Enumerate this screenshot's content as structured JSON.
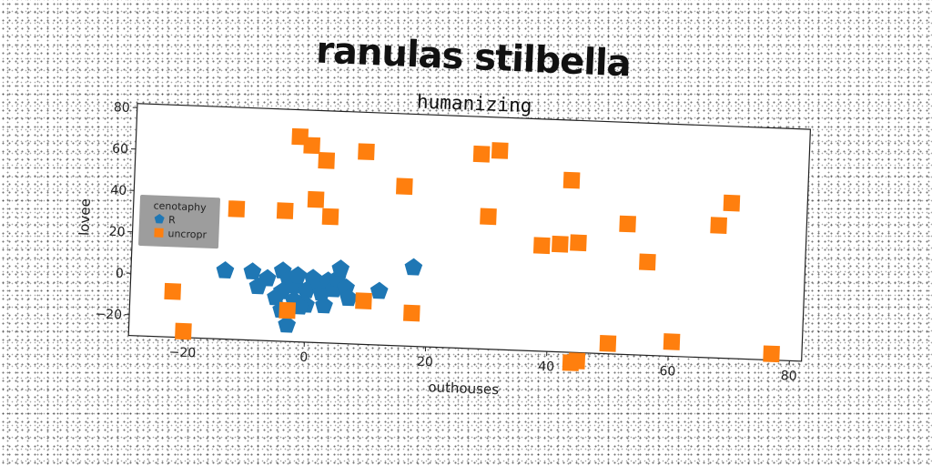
{
  "title": "ranulas stilbella",
  "chart_data": {
    "type": "scatter",
    "subtitle": "humanizing",
    "xlabel": "outhouses",
    "ylabel": "lovee",
    "xlim": [
      -29,
      82
    ],
    "ylim": [
      -30,
      82
    ],
    "xticks": [
      -20,
      0,
      20,
      40,
      60,
      80
    ],
    "yticks": [
      -20,
      0,
      20,
      40,
      60,
      80
    ],
    "grid": false,
    "legend": {
      "title": "cenotaphy",
      "placement": "left",
      "entries": [
        {
          "label": "R",
          "series": 0
        },
        {
          "label": "uncropr",
          "series": 1
        }
      ]
    },
    "series": [
      {
        "name": "R",
        "color": "#1f77b4",
        "marker": "pentagon",
        "points": [
          [
            -13.5,
            3
          ],
          [
            -9,
            3
          ],
          [
            -6.5,
            0
          ],
          [
            -8,
            -4
          ],
          [
            -4,
            4
          ],
          [
            -3,
            0
          ],
          [
            -2,
            -3
          ],
          [
            -1.5,
            2
          ],
          [
            0,
            -5
          ],
          [
            1,
            1
          ],
          [
            2,
            -2
          ],
          [
            2.5,
            -6
          ],
          [
            3.5,
            0
          ],
          [
            4.5,
            -4
          ],
          [
            5,
            1
          ],
          [
            5.5,
            6
          ],
          [
            6.5,
            -3
          ],
          [
            7,
            -8
          ],
          [
            -4,
            -6
          ],
          [
            -2,
            -10
          ],
          [
            0,
            -12
          ],
          [
            3,
            -12
          ],
          [
            -1,
            -13
          ],
          [
            -4,
            -15
          ],
          [
            -3,
            -22
          ],
          [
            12,
            -4
          ],
          [
            17.5,
            8
          ],
          [
            -5,
            -9
          ]
        ]
      },
      {
        "name": "uncropr",
        "color": "#ff7f0e",
        "marker": "square",
        "points": [
          [
            -22,
            -8
          ],
          [
            -20,
            -27
          ],
          [
            -12,
            33
          ],
          [
            -4,
            33
          ],
          [
            -3,
            -15
          ],
          [
            -2,
            69
          ],
          [
            0,
            65
          ],
          [
            1,
            39
          ],
          [
            2.5,
            58
          ],
          [
            3.5,
            31
          ],
          [
            9,
            63
          ],
          [
            9.5,
            -9
          ],
          [
            15.5,
            47
          ],
          [
            17.5,
            -14
          ],
          [
            28,
            64
          ],
          [
            31,
            66
          ],
          [
            29.5,
            34
          ],
          [
            38.5,
            21
          ],
          [
            41.5,
            22
          ],
          [
            43,
            53
          ],
          [
            44.5,
            23
          ],
          [
            44,
            -35
          ],
          [
            45,
            -34
          ],
          [
            50,
            -25
          ],
          [
            52.5,
            33
          ],
          [
            56,
            15
          ],
          [
            60.5,
            -23
          ],
          [
            67.5,
            34
          ],
          [
            69.5,
            45
          ],
          [
            77,
            -27
          ]
        ]
      }
    ]
  }
}
